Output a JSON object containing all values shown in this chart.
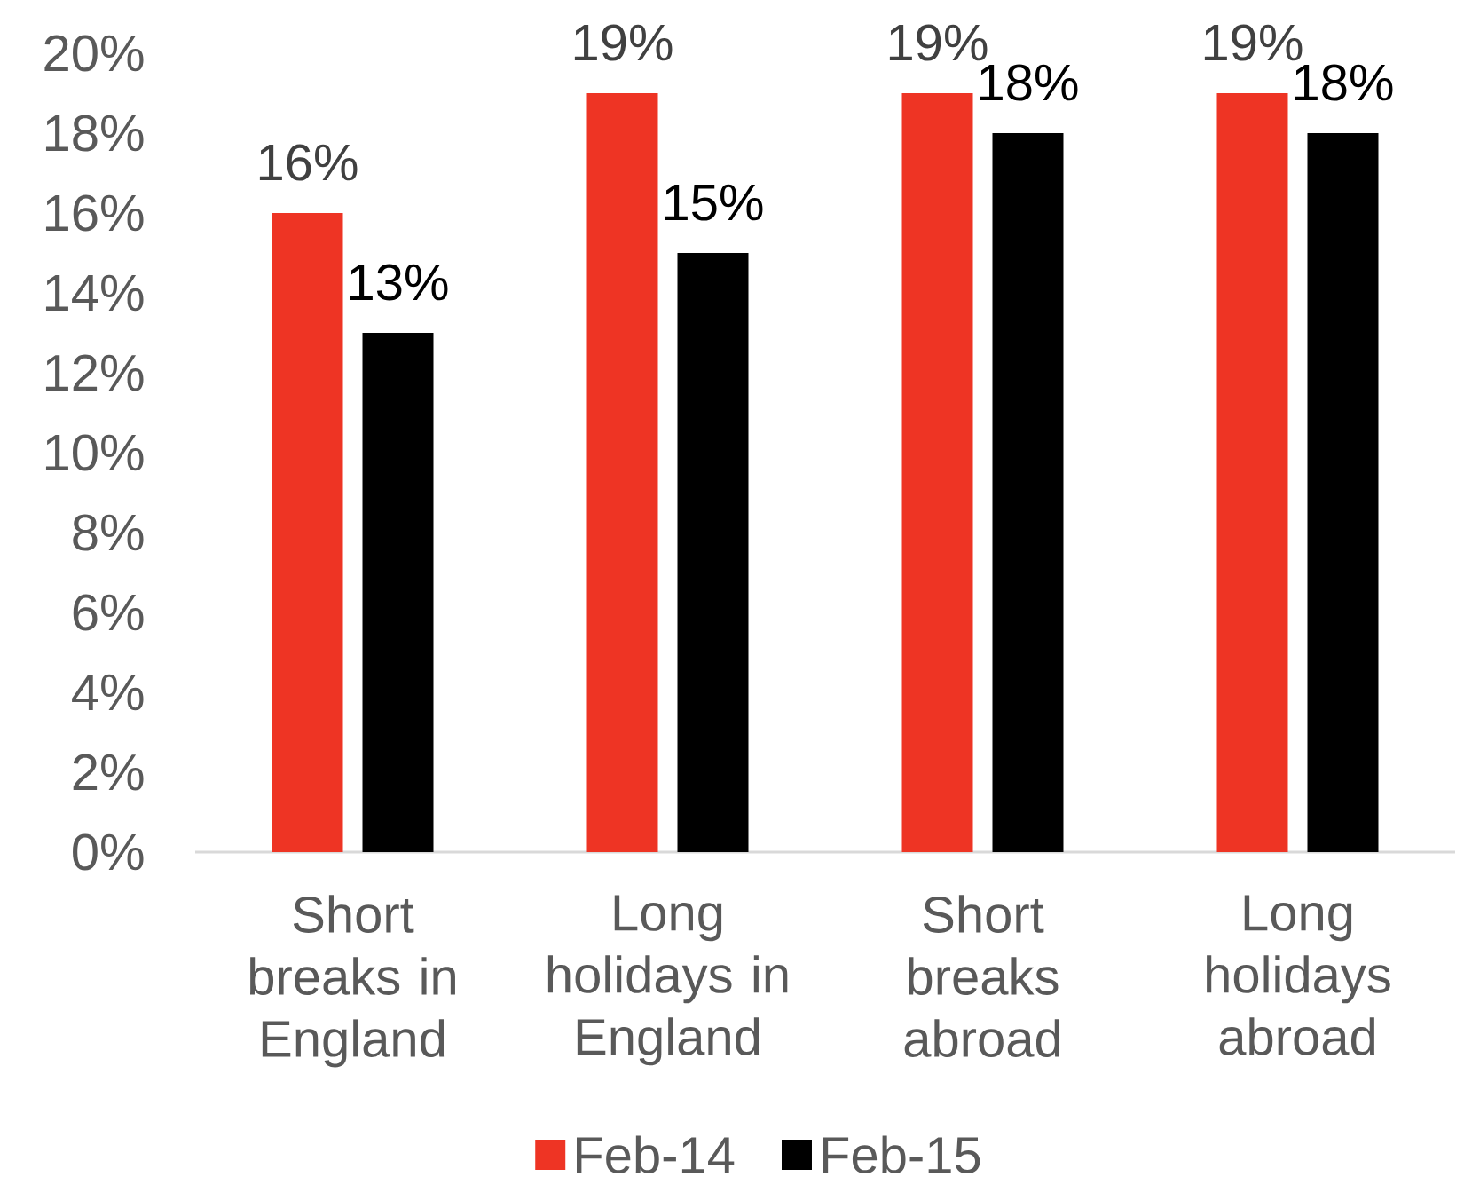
{
  "chart_data": {
    "type": "bar",
    "categories": [
      "Short breaks in England",
      "Long holidays in England",
      "Short breaks abroad",
      "Long holidays abroad"
    ],
    "series": [
      {
        "name": "Feb-14",
        "color": "#ee3424",
        "values": [
          16,
          19,
          19,
          19
        ],
        "value_labels": [
          "16%",
          "19%",
          "19%",
          "19%"
        ]
      },
      {
        "name": "Feb-15",
        "color": "#000000",
        "values": [
          13,
          15,
          18,
          18
        ],
        "value_labels": [
          "13%",
          "15%",
          "18%",
          "18%"
        ]
      }
    ],
    "ylim": [
      0,
      20
    ],
    "yticks": [
      {
        "value": 0,
        "label": "0%"
      },
      {
        "value": 2,
        "label": "2%"
      },
      {
        "value": 4,
        "label": "4%"
      },
      {
        "value": 6,
        "label": "6%"
      },
      {
        "value": 8,
        "label": "8%"
      },
      {
        "value": 10,
        "label": "10%"
      },
      {
        "value": 12,
        "label": "12%"
      },
      {
        "value": 14,
        "label": "14%"
      },
      {
        "value": 16,
        "label": "16%"
      },
      {
        "value": 18,
        "label": "18%"
      },
      {
        "value": 20,
        "label": "20%"
      }
    ],
    "legend": "bottom"
  }
}
